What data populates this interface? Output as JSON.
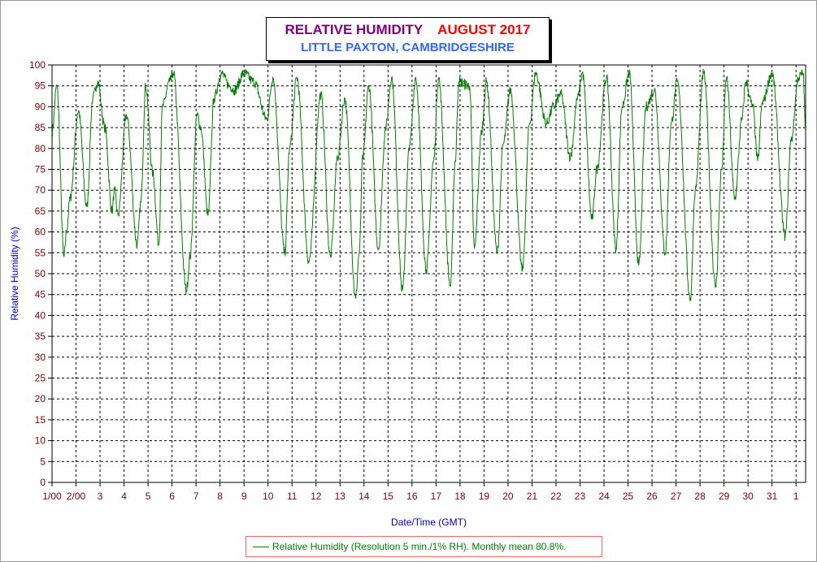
{
  "chart_data": {
    "type": "line",
    "title": "RELATIVE HUMIDITY",
    "title_period": "AUGUST 2017",
    "subtitle": "LITTLE PAXTON, CAMBRIDGESHIRE",
    "xlabel": "Date/Time (GMT)",
    "ylabel": "Relative Humidity (%)",
    "ylim": [
      0,
      100
    ],
    "yticks": [
      0,
      5,
      10,
      15,
      20,
      25,
      30,
      35,
      40,
      45,
      50,
      55,
      60,
      65,
      70,
      75,
      80,
      85,
      90,
      95,
      100
    ],
    "xticks": [
      "1/00",
      "2/00",
      "3",
      "4",
      "5",
      "6",
      "7",
      "8",
      "9",
      "10",
      "11",
      "12",
      "13",
      "14",
      "15",
      "16",
      "17",
      "18",
      "19",
      "20",
      "21",
      "22",
      "23",
      "24",
      "25",
      "26",
      "27",
      "28",
      "29",
      "30",
      "31",
      "1"
    ],
    "xlim_days": [
      1,
      32.4
    ],
    "grid": true,
    "legend_position": "bottom-center",
    "colors": {
      "series": "#008000",
      "axis_text": "#800000",
      "axis_label": "#0000c0"
    },
    "series": [
      {
        "name": "Relative Humidity (Resolution 5 min./1% RH). Monthly mean 80.8%.",
        "daily_extremes_day_rh": [
          [
            1.0,
            84
          ],
          [
            1.2,
            95
          ],
          [
            1.5,
            54
          ],
          [
            1.6,
            60
          ],
          [
            1.75,
            68
          ],
          [
            2.1,
            89
          ],
          [
            2.45,
            66
          ],
          [
            2.7,
            92
          ],
          [
            2.9,
            96
          ],
          [
            3.2,
            85
          ],
          [
            3.5,
            65
          ],
          [
            3.6,
            70
          ],
          [
            3.75,
            64
          ],
          [
            4.1,
            88
          ],
          [
            4.55,
            57
          ],
          [
            4.7,
            67
          ],
          [
            4.9,
            95
          ],
          [
            5.2,
            74
          ],
          [
            5.45,
            57
          ],
          [
            5.6,
            90
          ],
          [
            5.9,
            96
          ],
          [
            6.05,
            98
          ],
          [
            6.6,
            46
          ],
          [
            6.75,
            54
          ],
          [
            7.05,
            88
          ],
          [
            7.2,
            85
          ],
          [
            7.5,
            64
          ],
          [
            7.75,
            92
          ],
          [
            8.05,
            98
          ],
          [
            8.4,
            95
          ],
          [
            8.6,
            94
          ],
          [
            9.0,
            98
          ],
          [
            9.4,
            96
          ],
          [
            9.95,
            87
          ],
          [
            10.2,
            97
          ],
          [
            10.7,
            55
          ],
          [
            10.9,
            80
          ],
          [
            11.2,
            97
          ],
          [
            11.7,
            53
          ],
          [
            12.2,
            93
          ],
          [
            12.6,
            54
          ],
          [
            12.9,
            78
          ],
          [
            13.2,
            92
          ],
          [
            13.65,
            44
          ],
          [
            13.8,
            55
          ],
          [
            13.95,
            78
          ],
          [
            14.2,
            95
          ],
          [
            14.6,
            56
          ],
          [
            14.9,
            85
          ],
          [
            15.15,
            97
          ],
          [
            15.6,
            46
          ],
          [
            15.9,
            81
          ],
          [
            16.15,
            97
          ],
          [
            16.6,
            51
          ],
          [
            16.9,
            77
          ],
          [
            17.1,
            97
          ],
          [
            17.6,
            47
          ],
          [
            17.8,
            77
          ],
          [
            17.95,
            96
          ],
          [
            18.4,
            95
          ],
          [
            18.6,
            56
          ],
          [
            18.9,
            84
          ],
          [
            19.1,
            96
          ],
          [
            19.55,
            55
          ],
          [
            19.8,
            81
          ],
          [
            20.1,
            94
          ],
          [
            20.6,
            51
          ],
          [
            20.9,
            86
          ],
          [
            21.15,
            98
          ],
          [
            21.6,
            86
          ],
          [
            21.9,
            90
          ],
          [
            22.2,
            93
          ],
          [
            22.6,
            78
          ],
          [
            22.9,
            92
          ],
          [
            23.1,
            98
          ],
          [
            23.5,
            63
          ],
          [
            23.7,
            75
          ],
          [
            24.1,
            97
          ],
          [
            24.5,
            56
          ],
          [
            24.75,
            90
          ],
          [
            25.05,
            98
          ],
          [
            25.45,
            52
          ],
          [
            25.75,
            90
          ],
          [
            26.1,
            94
          ],
          [
            26.55,
            55
          ],
          [
            26.8,
            86
          ],
          [
            27.05,
            96
          ],
          [
            27.6,
            44
          ],
          [
            27.8,
            70
          ],
          [
            28.15,
            98
          ],
          [
            28.65,
            47
          ],
          [
            28.9,
            75
          ],
          [
            29.1,
            97
          ],
          [
            29.45,
            68
          ],
          [
            29.75,
            87
          ],
          [
            29.9,
            96
          ],
          [
            30.2,
            90
          ],
          [
            30.4,
            77
          ],
          [
            30.6,
            91
          ],
          [
            31.0,
            98
          ],
          [
            31.55,
            59
          ],
          [
            31.8,
            82
          ],
          [
            32.1,
            97
          ],
          [
            32.3,
            98
          ],
          [
            32.4,
            84
          ]
        ]
      }
    ]
  }
}
